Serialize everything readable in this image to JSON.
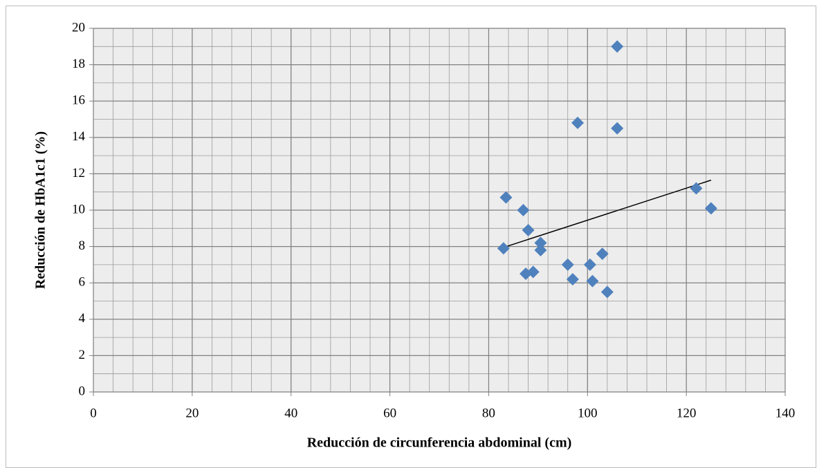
{
  "chart_data": {
    "type": "scatter",
    "x_label": "Reducción de circunferencia abdominal (cm)",
    "y_label": "Reducción de HbA1c1 (%)",
    "x": [
      83,
      83.5,
      87,
      87.5,
      88,
      89,
      90.5,
      90.5,
      96,
      97,
      98,
      100.5,
      101,
      103,
      104,
      106,
      106,
      122,
      125
    ],
    "series": [
      {
        "color": "#4f81bd",
        "values": [
          7.9,
          10.7,
          10.0,
          6.5,
          8.9,
          6.6,
          8.2,
          7.8,
          7.0,
          6.2,
          14.8,
          7.0,
          6.1,
          7.6,
          5.5,
          19.0,
          14.5,
          11.2,
          10.1
        ]
      }
    ],
    "trendline": {
      "color": "#000000",
      "x": [
        83,
        125
      ],
      "y": [
        7.95,
        11.65
      ]
    },
    "xlim": [
      0,
      140
    ],
    "xticks": [
      0,
      20,
      40,
      60,
      80,
      100,
      120,
      140
    ],
    "ylim": [
      0,
      20
    ],
    "yticks": [
      0,
      2,
      4,
      6,
      8,
      10,
      12,
      14,
      16,
      18,
      20
    ],
    "grid": true,
    "minor_grid": {
      "x": 4,
      "y": 1
    }
  }
}
